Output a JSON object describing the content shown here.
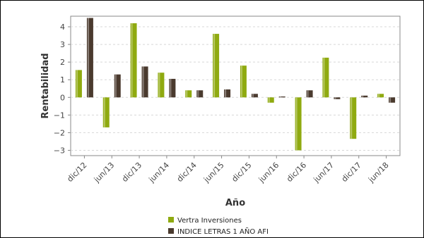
{
  "chart_data": {
    "type": "bar",
    "title": "",
    "xlabel": "Año",
    "ylabel": "Rentabilidad",
    "ylim": [
      -3.3,
      4.6
    ],
    "yticks": [
      -3,
      -2,
      -1,
      0,
      1,
      2,
      3,
      4
    ],
    "ytick_labels": [
      "−3",
      "−2",
      "−1",
      "0",
      "1",
      "2",
      "3",
      "4"
    ],
    "grid": true,
    "legend_position": "bottom",
    "categories": [
      "dic/12",
      "jun/13",
      "dic/13",
      "jun/14",
      "dic/14",
      "jun/15",
      "dic/15",
      "jun/16",
      "dic/16",
      "jun/17",
      "dic/17",
      "jun/18"
    ],
    "series": [
      {
        "name": "Vertra Inversiones",
        "color": "#8faa10",
        "values": [
          1.55,
          -1.7,
          4.2,
          1.4,
          0.4,
          3.6,
          1.8,
          -0.3,
          -3.0,
          2.25,
          -2.35,
          0.2
        ]
      },
      {
        "name": "INDICE LETRAS 1 AÑO AFI",
        "color": "#4a3a2e",
        "values": [
          4.5,
          1.3,
          1.75,
          1.05,
          0.4,
          0.45,
          0.2,
          0.05,
          0.4,
          -0.1,
          0.1,
          -0.3
        ]
      }
    ]
  }
}
